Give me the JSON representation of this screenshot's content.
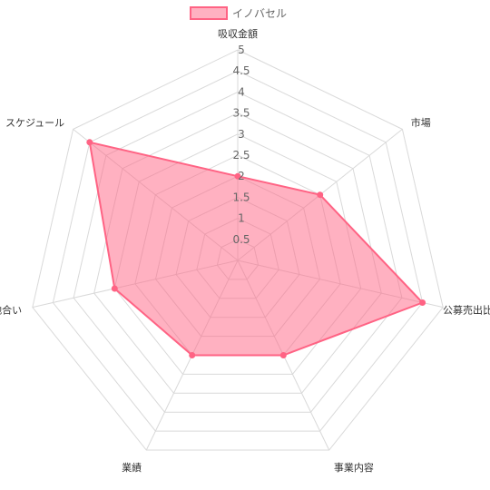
{
  "chart_data": {
    "type": "radar",
    "categories": [
      "吸収金額",
      "市場",
      "公募売出比",
      "事業内容",
      "業績",
      "地合い",
      "スケジュール"
    ],
    "series": [
      {
        "name": "イノバセル",
        "values": [
          2,
          2.5,
          4.5,
          2.5,
          2.5,
          3,
          4.5
        ],
        "color": "#ff6384",
        "fill": "rgba(255,99,132,0.5)"
      }
    ],
    "r_ticks": [
      "0.5",
      "1",
      "1.5",
      "2",
      "2.5",
      "3",
      "3.5",
      "4",
      "4.5",
      "5"
    ],
    "r_range": [
      0,
      5
    ],
    "grid": true,
    "legend_position": "top"
  }
}
